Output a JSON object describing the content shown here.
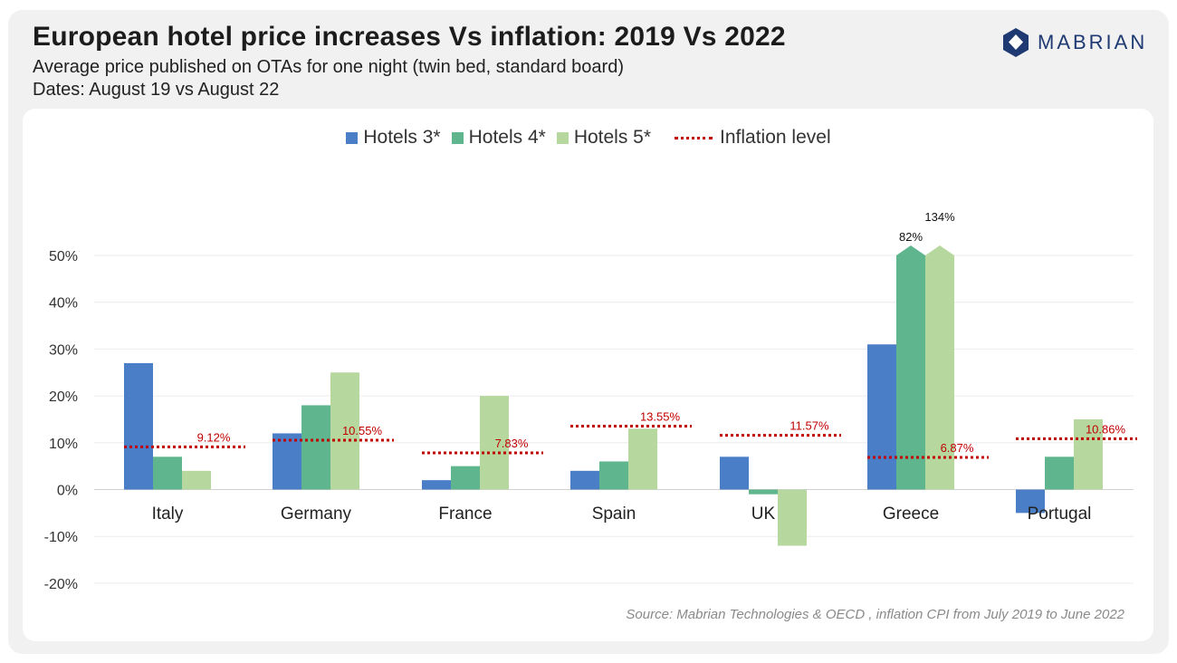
{
  "header": {
    "title": "European hotel price increases Vs inflation: 2019 Vs 2022",
    "subtitle_line1": "Average price published on OTAs for one night (twin bed, standard board)",
    "subtitle_line2": "Dates: August 19 vs August 22"
  },
  "logo": {
    "text": "MABRIAN",
    "color": "#1f3a73"
  },
  "source": "Source: Mabrian Technologies & OECD , inflation CPI from July 2019 to June 2022",
  "colors": {
    "hotels3": "#4a7fc8",
    "hotels4": "#5fb58d",
    "hotels5": "#b6d89f",
    "inflation": "#c00000"
  },
  "chart_data": {
    "type": "bar",
    "categories": [
      "Italy",
      "Germany",
      "France",
      "Spain",
      "UK",
      "Greece",
      "Portugal"
    ],
    "series": [
      {
        "name": "Hotels 3*",
        "values": [
          27,
          12,
          2,
          4,
          7,
          31,
          -5
        ]
      },
      {
        "name": "Hotels 4*",
        "values": [
          7,
          18,
          5,
          6,
          -1,
          82,
          7
        ]
      },
      {
        "name": "Hotels 5*",
        "values": [
          4,
          25,
          20,
          13,
          -12,
          134,
          15
        ]
      }
    ],
    "inflation": {
      "name": "Inflation level",
      "values": [
        9.12,
        10.55,
        7.83,
        13.55,
        11.57,
        6.87,
        10.86
      ],
      "labels": [
        "9.12%",
        "10.55%",
        "7.83%",
        "13.55%",
        "11.57%",
        "6.87%",
        "10.86%"
      ]
    },
    "bar_value_labels": [
      {
        "category": "Greece",
        "series": "Hotels 4*",
        "text": "82%"
      },
      {
        "category": "Greece",
        "series": "Hotels 5*",
        "text": "134%"
      }
    ],
    "yticks": [
      "50%",
      "40%",
      "30%",
      "20%",
      "10%",
      "0%",
      "-10%",
      "-20%"
    ],
    "ytick_values": [
      50,
      40,
      30,
      20,
      10,
      0,
      -10,
      -20
    ],
    "ylim": [
      -20,
      50
    ],
    "axis_break": true,
    "grid": true,
    "legend_position": "top-center",
    "title": "",
    "xlabel": "",
    "ylabel": ""
  }
}
